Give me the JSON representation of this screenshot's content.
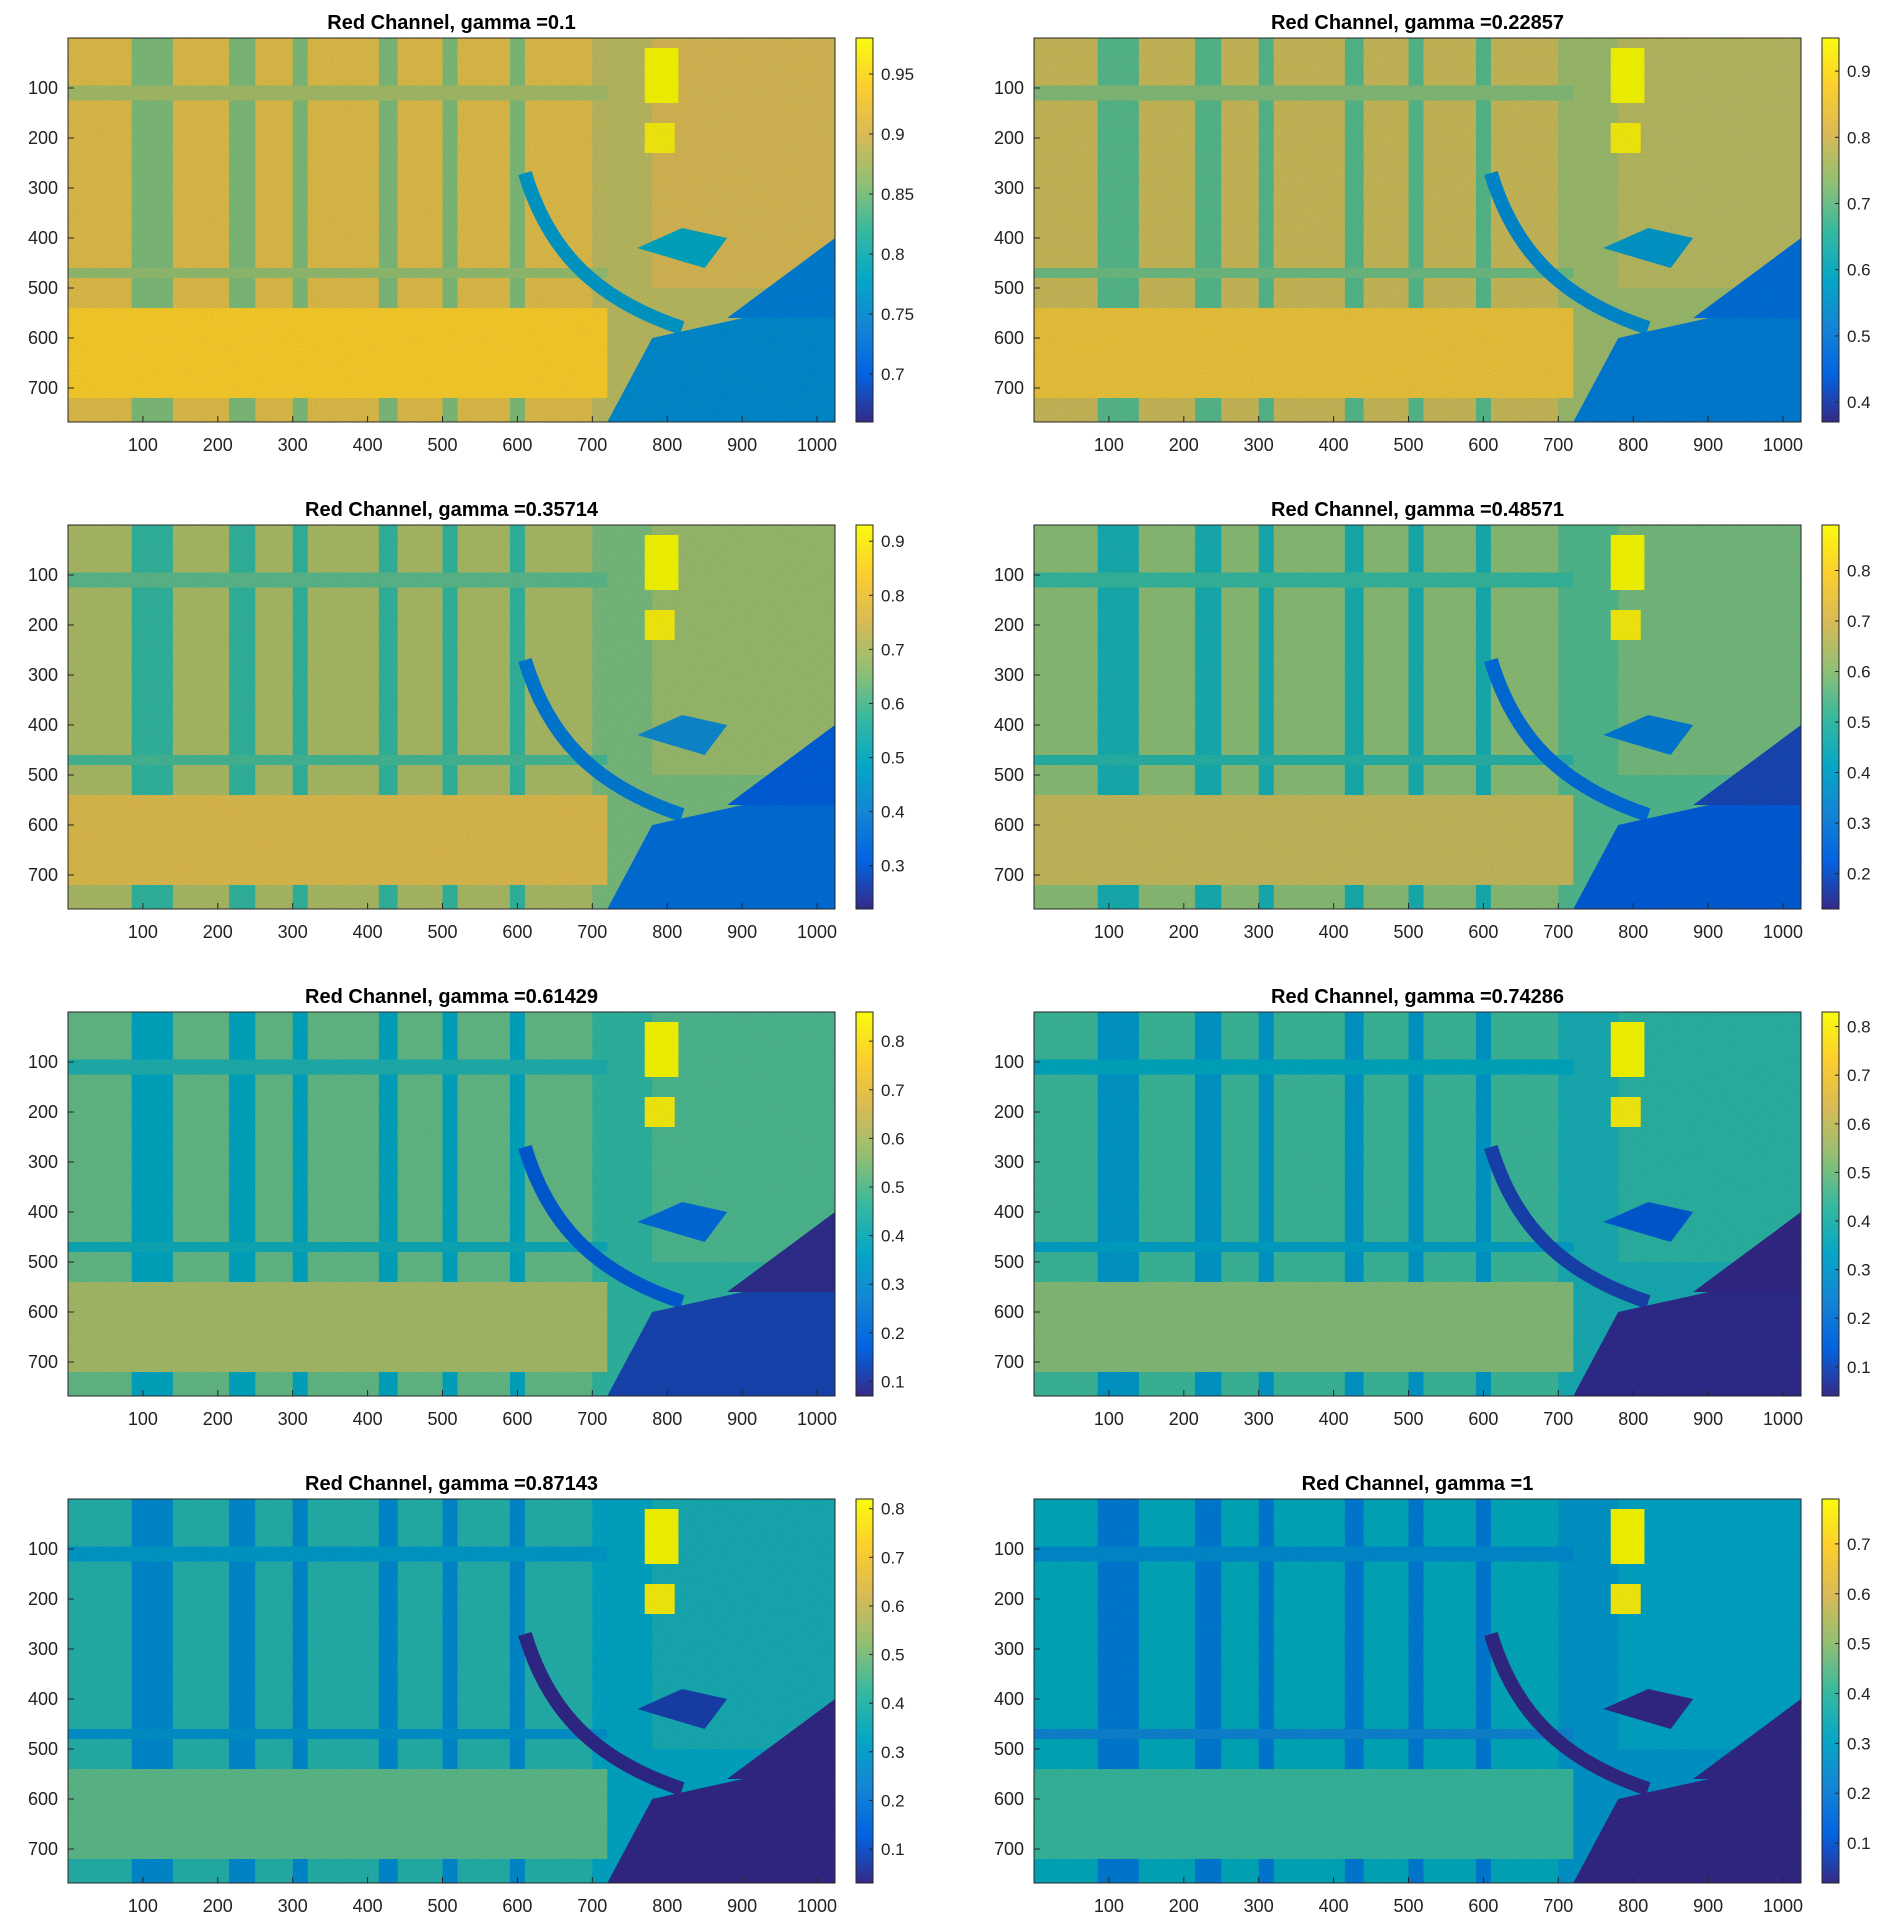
{
  "chart_data": [
    {
      "type": "heatmap",
      "title": "Red Channel, gamma =0.1",
      "gamma": 0.1,
      "xticks": [
        100,
        200,
        300,
        400,
        500,
        600,
        700,
        800,
        900,
        1000
      ],
      "yticks": [
        100,
        200,
        300,
        400,
        500,
        600,
        700
      ],
      "xlim": [
        1,
        1024
      ],
      "ylim": [
        1,
        768
      ],
      "colorbar": {
        "ticks": [
          0.7,
          0.75,
          0.8,
          0.85,
          0.9,
          0.95
        ],
        "labels": [
          "0.7",
          "0.75",
          "0.8",
          "0.85",
          "0.9",
          "0.95"
        ],
        "range": [
          0.66,
          0.98
        ]
      },
      "colormap": "parula"
    },
    {
      "type": "heatmap",
      "title": "Red Channel, gamma =0.22857",
      "gamma": 0.22857,
      "xticks": [
        100,
        200,
        300,
        400,
        500,
        600,
        700,
        800,
        900,
        1000
      ],
      "yticks": [
        100,
        200,
        300,
        400,
        500,
        600,
        700
      ],
      "xlim": [
        1,
        1024
      ],
      "ylim": [
        1,
        768
      ],
      "colorbar": {
        "ticks": [
          0.4,
          0.5,
          0.6,
          0.7,
          0.8,
          0.9
        ],
        "labels": [
          "0.4",
          "0.5",
          "0.6",
          "0.7",
          "0.8",
          "0.9"
        ],
        "range": [
          0.37,
          0.95
        ]
      },
      "colormap": "parula"
    },
    {
      "type": "heatmap",
      "title": "Red Channel, gamma =0.35714",
      "gamma": 0.35714,
      "xticks": [
        100,
        200,
        300,
        400,
        500,
        600,
        700,
        800,
        900,
        1000
      ],
      "yticks": [
        100,
        200,
        300,
        400,
        500,
        600,
        700
      ],
      "xlim": [
        1,
        1024
      ],
      "ylim": [
        1,
        768
      ],
      "colorbar": {
        "ticks": [
          0.3,
          0.4,
          0.5,
          0.6,
          0.7,
          0.8,
          0.9
        ],
        "labels": [
          "0.3",
          "0.4",
          "0.5",
          "0.6",
          "0.7",
          "0.8",
          "0.9"
        ],
        "range": [
          0.22,
          0.93
        ]
      },
      "colormap": "parula"
    },
    {
      "type": "heatmap",
      "title": "Red Channel, gamma =0.48571",
      "gamma": 0.48571,
      "xticks": [
        100,
        200,
        300,
        400,
        500,
        600,
        700,
        800,
        900,
        1000
      ],
      "yticks": [
        100,
        200,
        300,
        400,
        500,
        600,
        700
      ],
      "xlim": [
        1,
        1024
      ],
      "ylim": [
        1,
        768
      ],
      "colorbar": {
        "ticks": [
          0.2,
          0.3,
          0.4,
          0.5,
          0.6,
          0.7,
          0.8
        ],
        "labels": [
          "0.2",
          "0.3",
          "0.4",
          "0.5",
          "0.6",
          "0.7",
          "0.8"
        ],
        "range": [
          0.13,
          0.89
        ]
      },
      "colormap": "parula"
    },
    {
      "type": "heatmap",
      "title": "Red Channel, gamma =0.61429",
      "gamma": 0.61429,
      "xticks": [
        100,
        200,
        300,
        400,
        500,
        600,
        700,
        800,
        900,
        1000
      ],
      "yticks": [
        100,
        200,
        300,
        400,
        500,
        600,
        700
      ],
      "xlim": [
        1,
        1024
      ],
      "ylim": [
        1,
        768
      ],
      "colorbar": {
        "ticks": [
          0.1,
          0.2,
          0.3,
          0.4,
          0.5,
          0.6,
          0.7,
          0.8
        ],
        "labels": [
          "0.1",
          "0.2",
          "0.3",
          "0.4",
          "0.5",
          "0.6",
          "0.7",
          "0.8"
        ],
        "range": [
          0.07,
          0.86
        ]
      },
      "colormap": "parula"
    },
    {
      "type": "heatmap",
      "title": "Red Channel, gamma =0.74286",
      "gamma": 0.74286,
      "xticks": [
        100,
        200,
        300,
        400,
        500,
        600,
        700,
        800,
        900,
        1000
      ],
      "yticks": [
        100,
        200,
        300,
        400,
        500,
        600,
        700
      ],
      "xlim": [
        1,
        1024
      ],
      "ylim": [
        1,
        768
      ],
      "colorbar": {
        "ticks": [
          0.1,
          0.2,
          0.3,
          0.4,
          0.5,
          0.6,
          0.7,
          0.8
        ],
        "labels": [
          "0.1",
          "0.2",
          "0.3",
          "0.4",
          "0.5",
          "0.6",
          "0.7",
          "0.8"
        ],
        "range": [
          0.04,
          0.83
        ]
      },
      "colormap": "parula"
    },
    {
      "type": "heatmap",
      "title": "Red Channel, gamma =0.87143",
      "gamma": 0.87143,
      "xticks": [
        100,
        200,
        300,
        400,
        500,
        600,
        700,
        800,
        900,
        1000
      ],
      "yticks": [
        100,
        200,
        300,
        400,
        500,
        600,
        700
      ],
      "xlim": [
        1,
        1024
      ],
      "ylim": [
        1,
        768
      ],
      "colorbar": {
        "ticks": [
          0.1,
          0.2,
          0.3,
          0.4,
          0.5,
          0.6,
          0.7,
          0.8
        ],
        "labels": [
          "0.1",
          "0.2",
          "0.3",
          "0.4",
          "0.5",
          "0.6",
          "0.7",
          "0.8"
        ],
        "range": [
          0.03,
          0.82
        ]
      },
      "colormap": "parula"
    },
    {
      "type": "heatmap",
      "title": "Red Channel, gamma =1",
      "gamma": 1,
      "xticks": [
        100,
        200,
        300,
        400,
        500,
        600,
        700,
        800,
        900,
        1000
      ],
      "yticks": [
        100,
        200,
        300,
        400,
        500,
        600,
        700
      ],
      "xlim": [
        1,
        1024
      ],
      "ylim": [
        1,
        768
      ],
      "colorbar": {
        "ticks": [
          0.1,
          0.2,
          0.3,
          0.4,
          0.5,
          0.6,
          0.7
        ],
        "labels": [
          "0.1",
          "0.2",
          "0.3",
          "0.4",
          "0.5",
          "0.6",
          "0.7"
        ],
        "range": [
          0.02,
          0.79
        ]
      },
      "colormap": "parula"
    }
  ],
  "colors": {
    "parula_stops": [
      "#352a87",
      "#0363e1",
      "#1485d4",
      "#06a7c6",
      "#38b99e",
      "#92bf73",
      "#d9ba56",
      "#fcce2e",
      "#f9fb0e"
    ]
  }
}
